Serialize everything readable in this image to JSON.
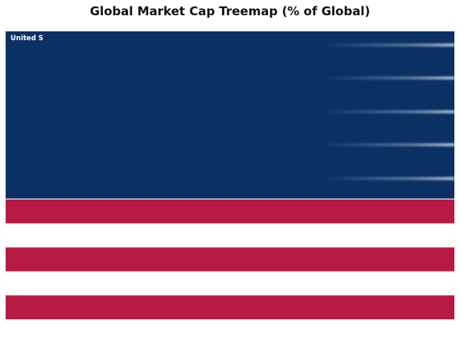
{
  "chart_data": {
    "type": "treemap",
    "title": "Global Market Cap Treemap (% of Global)",
    "tiles": [
      {
        "label": "United S",
        "color": "#0b3064"
      }
    ],
    "fill_pattern": {
      "canton_color": "#0b3064",
      "stripe_colors": [
        "#ffffff",
        "#b71a42"
      ],
      "canton_highlight_color": "#8fa7c6"
    }
  }
}
